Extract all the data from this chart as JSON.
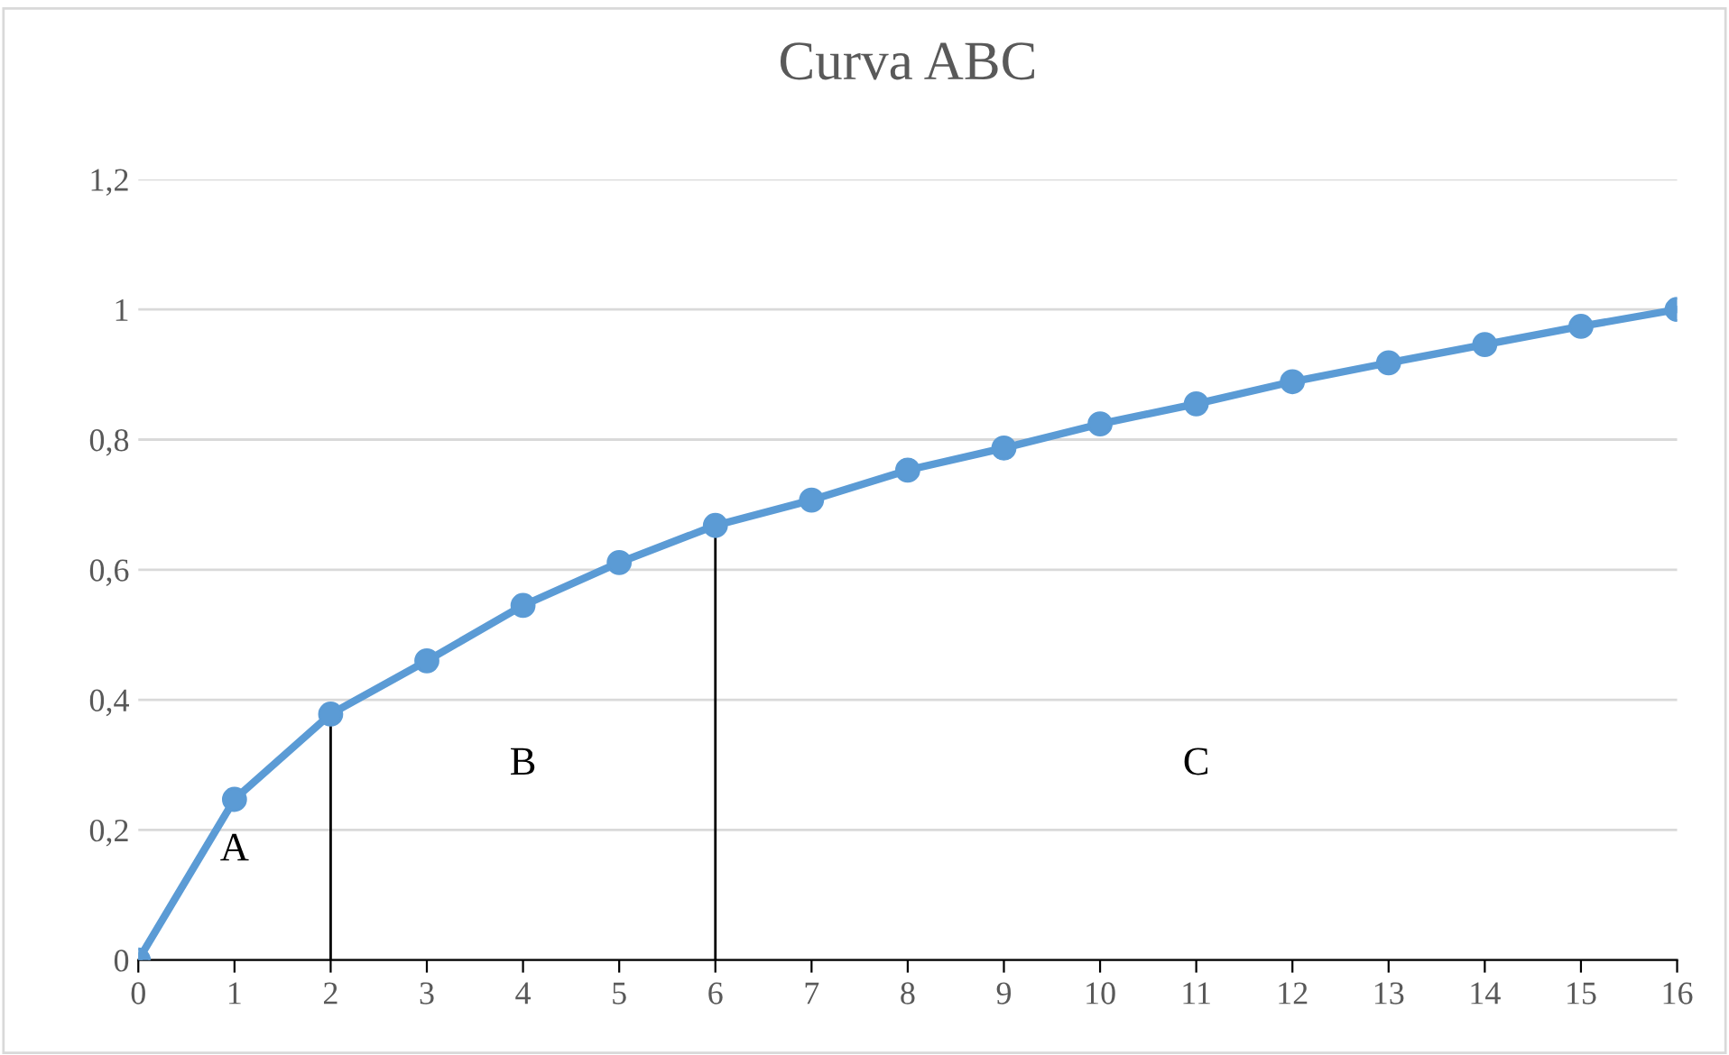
{
  "chart_data": {
    "type": "line",
    "title": "Curva ABC",
    "x": [
      0,
      1,
      2,
      3,
      4,
      5,
      6,
      7,
      8,
      9,
      10,
      11,
      12,
      13,
      14,
      15,
      16
    ],
    "series": [
      {
        "color": "#5b9bd5",
        "values": [
          0,
          0.247,
          0.378,
          0.46,
          0.545,
          0.611,
          0.668,
          0.707,
          0.753,
          0.787,
          0.824,
          0.855,
          0.889,
          0.918,
          0.946,
          0.974,
          1
        ]
      }
    ],
    "xlim": [
      0,
      16
    ],
    "xticks": [
      0,
      1,
      2,
      3,
      4,
      5,
      6,
      7,
      8,
      9,
      10,
      11,
      12,
      13,
      14,
      15,
      16
    ],
    "ylim": [
      0,
      1.2
    ],
    "yticks": [
      0,
      {
        "value": 0.2,
        "label": "0,2"
      },
      {
        "value": 0.4,
        "label": "0,4"
      },
      {
        "value": 0.6,
        "label": "0,6"
      },
      {
        "value": 0.8,
        "label": "0,8"
      },
      1,
      {
        "value": 1.2,
        "label": "1,2"
      }
    ],
    "grid": "y",
    "marker": "circle",
    "line_style": "solid",
    "legend": false,
    "ref_lines": [
      {
        "axis": "x",
        "value": 2,
        "color": "#000000"
      },
      {
        "axis": "x",
        "value": 6,
        "color": "#000000"
      }
    ],
    "annotations": [
      "A",
      "B",
      "C"
    ]
  }
}
